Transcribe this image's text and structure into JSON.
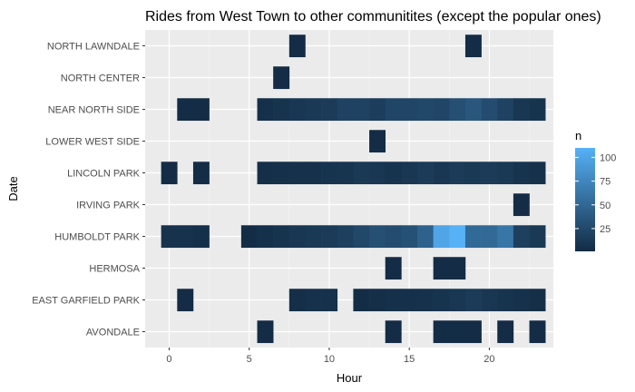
{
  "chart_data": {
    "type": "heatmap",
    "title": "Rides from West Town to other communitites (except the popular ones)",
    "xlabel": "Hour",
    "ylabel": "Date",
    "x_ticks": [
      0,
      5,
      10,
      15,
      20
    ],
    "xlim": [
      -1.5,
      24
    ],
    "categories": [
      "AVONDALE",
      "EAST GARFIELD PARK",
      "HERMOSA",
      "HUMBOLDT PARK",
      "IRVING PARK",
      "LINCOLN PARK",
      "LOWER WEST SIDE",
      "NEAR NORTH SIDE",
      "NORTH CENTER",
      "NORTH LAWNDALE"
    ],
    "legend": {
      "title": "n",
      "ticks": [
        25,
        50,
        75,
        100
      ],
      "min": 1,
      "max": 110,
      "low_color": "#132b43",
      "high_color": "#56b1f7",
      "placement": "right"
    },
    "grid": true,
    "cells": [
      {
        "y": "AVONDALE",
        "x": 6,
        "n": 2
      },
      {
        "y": "AVONDALE",
        "x": 14,
        "n": 2
      },
      {
        "y": "AVONDALE",
        "x": 17,
        "n": 3
      },
      {
        "y": "AVONDALE",
        "x": 18,
        "n": 3
      },
      {
        "y": "AVONDALE",
        "x": 19,
        "n": 2
      },
      {
        "y": "AVONDALE",
        "x": 21,
        "n": 2
      },
      {
        "y": "AVONDALE",
        "x": 23,
        "n": 2
      },
      {
        "y": "EAST GARFIELD PARK",
        "x": 1,
        "n": 2
      },
      {
        "y": "EAST GARFIELD PARK",
        "x": 8,
        "n": 4
      },
      {
        "y": "EAST GARFIELD PARK",
        "x": 9,
        "n": 6
      },
      {
        "y": "EAST GARFIELD PARK",
        "x": 10,
        "n": 6
      },
      {
        "y": "EAST GARFIELD PARK",
        "x": 12,
        "n": 3
      },
      {
        "y": "EAST GARFIELD PARK",
        "x": 13,
        "n": 4
      },
      {
        "y": "EAST GARFIELD PARK",
        "x": 14,
        "n": 5
      },
      {
        "y": "EAST GARFIELD PARK",
        "x": 15,
        "n": 5
      },
      {
        "y": "EAST GARFIELD PARK",
        "x": 16,
        "n": 6
      },
      {
        "y": "EAST GARFIELD PARK",
        "x": 17,
        "n": 8
      },
      {
        "y": "EAST GARFIELD PARK",
        "x": 18,
        "n": 10
      },
      {
        "y": "EAST GARFIELD PARK",
        "x": 19,
        "n": 14
      },
      {
        "y": "EAST GARFIELD PARK",
        "x": 20,
        "n": 10
      },
      {
        "y": "EAST GARFIELD PARK",
        "x": 21,
        "n": 8
      },
      {
        "y": "EAST GARFIELD PARK",
        "x": 22,
        "n": 6
      },
      {
        "y": "EAST GARFIELD PARK",
        "x": 23,
        "n": 4
      },
      {
        "y": "HERMOSA",
        "x": 14,
        "n": 2
      },
      {
        "y": "HERMOSA",
        "x": 17,
        "n": 2
      },
      {
        "y": "HERMOSA",
        "x": 18,
        "n": 2
      },
      {
        "y": "HUMBOLDT PARK",
        "x": 0,
        "n": 7
      },
      {
        "y": "HUMBOLDT PARK",
        "x": 1,
        "n": 7
      },
      {
        "y": "HUMBOLDT PARK",
        "x": 2,
        "n": 5
      },
      {
        "y": "HUMBOLDT PARK",
        "x": 5,
        "n": 3
      },
      {
        "y": "HUMBOLDT PARK",
        "x": 6,
        "n": 5
      },
      {
        "y": "HUMBOLDT PARK",
        "x": 7,
        "n": 8
      },
      {
        "y": "HUMBOLDT PARK",
        "x": 8,
        "n": 10
      },
      {
        "y": "HUMBOLDT PARK",
        "x": 9,
        "n": 12
      },
      {
        "y": "HUMBOLDT PARK",
        "x": 10,
        "n": 14
      },
      {
        "y": "HUMBOLDT PARK",
        "x": 11,
        "n": 18
      },
      {
        "y": "HUMBOLDT PARK",
        "x": 12,
        "n": 24
      },
      {
        "y": "HUMBOLDT PARK",
        "x": 13,
        "n": 30
      },
      {
        "y": "HUMBOLDT PARK",
        "x": 14,
        "n": 28
      },
      {
        "y": "HUMBOLDT PARK",
        "x": 15,
        "n": 32
      },
      {
        "y": "HUMBOLDT PARK",
        "x": 16,
        "n": 45
      },
      {
        "y": "HUMBOLDT PARK",
        "x": 17,
        "n": 100
      },
      {
        "y": "HUMBOLDT PARK",
        "x": 18,
        "n": 110
      },
      {
        "y": "HUMBOLDT PARK",
        "x": 19,
        "n": 52
      },
      {
        "y": "HUMBOLDT PARK",
        "x": 20,
        "n": 52
      },
      {
        "y": "HUMBOLDT PARK",
        "x": 21,
        "n": 62
      },
      {
        "y": "HUMBOLDT PARK",
        "x": 22,
        "n": 18
      },
      {
        "y": "HUMBOLDT PARK",
        "x": 23,
        "n": 12
      },
      {
        "y": "IRVING PARK",
        "x": 22,
        "n": 2
      },
      {
        "y": "LINCOLN PARK",
        "x": 0,
        "n": 2
      },
      {
        "y": "LINCOLN PARK",
        "x": 2,
        "n": 2
      },
      {
        "y": "LINCOLN PARK",
        "x": 6,
        "n": 4
      },
      {
        "y": "LINCOLN PARK",
        "x": 7,
        "n": 5
      },
      {
        "y": "LINCOLN PARK",
        "x": 8,
        "n": 6
      },
      {
        "y": "LINCOLN PARK",
        "x": 9,
        "n": 6
      },
      {
        "y": "LINCOLN PARK",
        "x": 10,
        "n": 8
      },
      {
        "y": "LINCOLN PARK",
        "x": 11,
        "n": 9
      },
      {
        "y": "LINCOLN PARK",
        "x": 12,
        "n": 12
      },
      {
        "y": "LINCOLN PARK",
        "x": 13,
        "n": 10
      },
      {
        "y": "LINCOLN PARK",
        "x": 14,
        "n": 8
      },
      {
        "y": "LINCOLN PARK",
        "x": 15,
        "n": 10
      },
      {
        "y": "LINCOLN PARK",
        "x": 16,
        "n": 14
      },
      {
        "y": "LINCOLN PARK",
        "x": 17,
        "n": 10
      },
      {
        "y": "LINCOLN PARK",
        "x": 18,
        "n": 14
      },
      {
        "y": "LINCOLN PARK",
        "x": 19,
        "n": 12
      },
      {
        "y": "LINCOLN PARK",
        "x": 20,
        "n": 14
      },
      {
        "y": "LINCOLN PARK",
        "x": 21,
        "n": 12
      },
      {
        "y": "LINCOLN PARK",
        "x": 22,
        "n": 8
      },
      {
        "y": "LINCOLN PARK",
        "x": 23,
        "n": 6
      },
      {
        "y": "LOWER WEST SIDE",
        "x": 13,
        "n": 2
      },
      {
        "y": "NEAR NORTH SIDE",
        "x": 1,
        "n": 2
      },
      {
        "y": "NEAR NORTH SIDE",
        "x": 2,
        "n": 2
      },
      {
        "y": "NEAR NORTH SIDE",
        "x": 6,
        "n": 5
      },
      {
        "y": "NEAR NORTH SIDE",
        "x": 7,
        "n": 8
      },
      {
        "y": "NEAR NORTH SIDE",
        "x": 8,
        "n": 10
      },
      {
        "y": "NEAR NORTH SIDE",
        "x": 9,
        "n": 12
      },
      {
        "y": "NEAR NORTH SIDE",
        "x": 10,
        "n": 14
      },
      {
        "y": "NEAR NORTH SIDE",
        "x": 11,
        "n": 20
      },
      {
        "y": "NEAR NORTH SIDE",
        "x": 12,
        "n": 20
      },
      {
        "y": "NEAR NORTH SIDE",
        "x": 13,
        "n": 16
      },
      {
        "y": "NEAR NORTH SIDE",
        "x": 14,
        "n": 22
      },
      {
        "y": "NEAR NORTH SIDE",
        "x": 15,
        "n": 22
      },
      {
        "y": "NEAR NORTH SIDE",
        "x": 16,
        "n": 24
      },
      {
        "y": "NEAR NORTH SIDE",
        "x": 17,
        "n": 22
      },
      {
        "y": "NEAR NORTH SIDE",
        "x": 18,
        "n": 30
      },
      {
        "y": "NEAR NORTH SIDE",
        "x": 19,
        "n": 36
      },
      {
        "y": "NEAR NORTH SIDE",
        "x": 20,
        "n": 28
      },
      {
        "y": "NEAR NORTH SIDE",
        "x": 21,
        "n": 20
      },
      {
        "y": "NEAR NORTH SIDE",
        "x": 22,
        "n": 10
      },
      {
        "y": "NEAR NORTH SIDE",
        "x": 23,
        "n": 8
      },
      {
        "y": "NORTH CENTER",
        "x": 7,
        "n": 2
      },
      {
        "y": "NORTH LAWNDALE",
        "x": 8,
        "n": 2
      },
      {
        "y": "NORTH LAWNDALE",
        "x": 19,
        "n": 2
      }
    ]
  }
}
